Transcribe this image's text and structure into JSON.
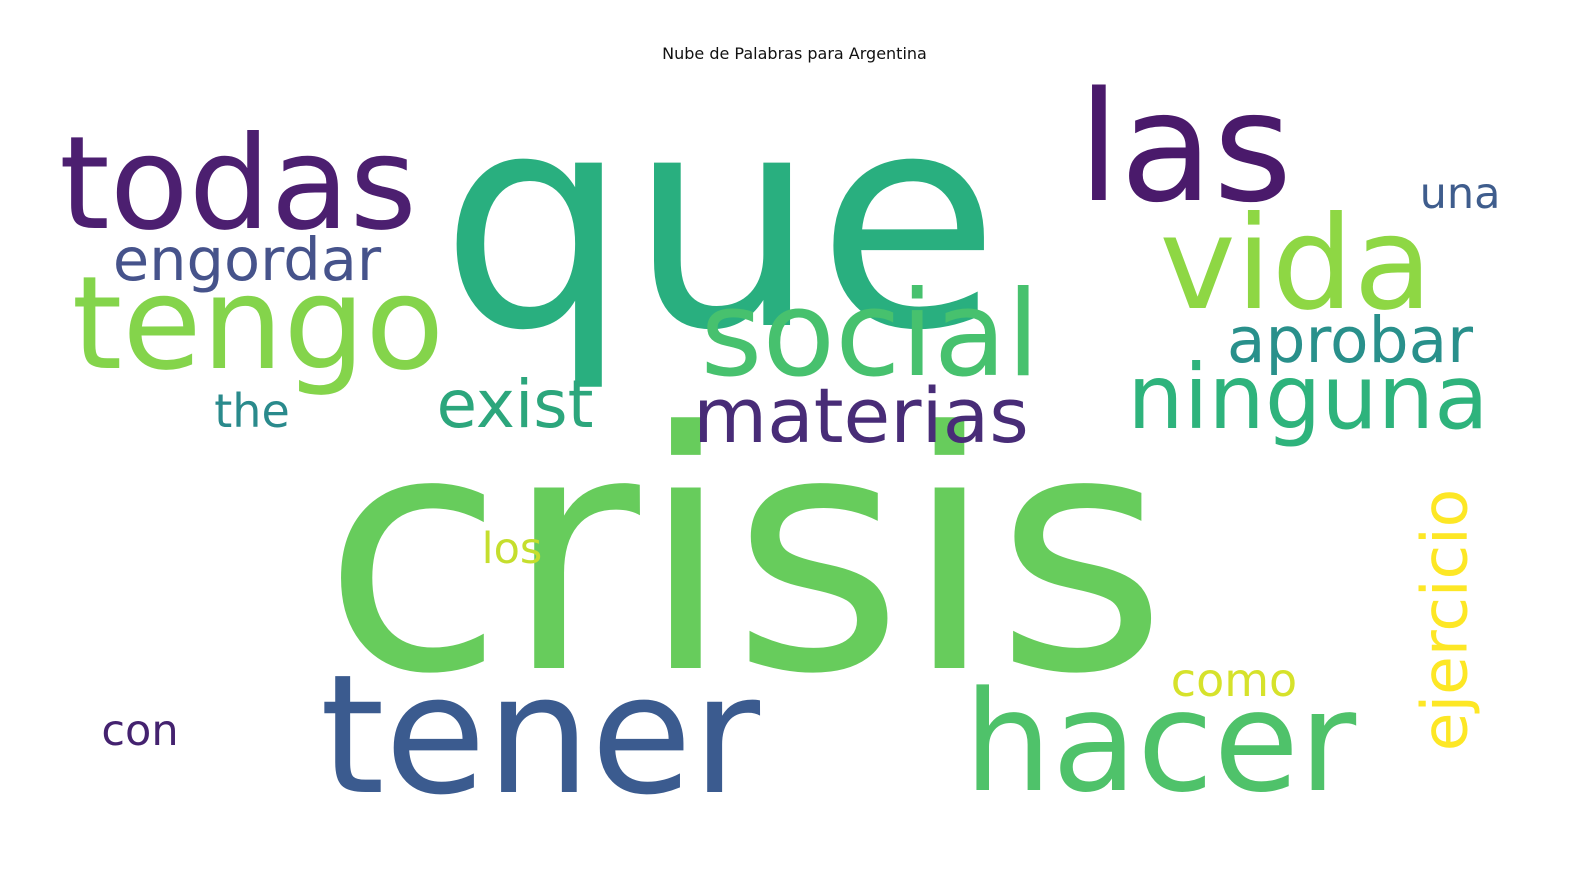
{
  "chart_data": {
    "type": "wordcloud",
    "title": "Nube de Palabras para Argentina",
    "words": [
      {
        "text": "crisis",
        "weight": 1.0,
        "color": "#67cc5c",
        "orientation": "horizontal"
      },
      {
        "text": "que",
        "weight": 0.9,
        "color": "#29af7f",
        "orientation": "horizontal"
      },
      {
        "text": "tener",
        "weight": 0.5,
        "color": "#3b5b8f",
        "orientation": "horizontal"
      },
      {
        "text": "las",
        "weight": 0.46,
        "color": "#4a1a6b",
        "orientation": "horizontal"
      },
      {
        "text": "hacer",
        "weight": 0.42,
        "color": "#4fc26a",
        "orientation": "horizontal"
      },
      {
        "text": "todas",
        "weight": 0.39,
        "color": "#4c1f70",
        "orientation": "horizontal"
      },
      {
        "text": "tengo",
        "weight": 0.39,
        "color": "#84d44b",
        "orientation": "horizontal"
      },
      {
        "text": "vida",
        "weight": 0.39,
        "color": "#8ed744",
        "orientation": "horizontal"
      },
      {
        "text": "social",
        "weight": 0.36,
        "color": "#47c16e",
        "orientation": "horizontal"
      },
      {
        "text": "ninguna",
        "weight": 0.27,
        "color": "#2eb37c",
        "orientation": "horizontal"
      },
      {
        "text": "materias",
        "weight": 0.23,
        "color": "#482c77",
        "orientation": "horizontal"
      },
      {
        "text": "exist",
        "weight": 0.2,
        "color": "#2ca67c",
        "orientation": "horizontal"
      },
      {
        "text": "aprobar",
        "weight": 0.19,
        "color": "#29908b",
        "orientation": "horizontal"
      },
      {
        "text": "ejercicio",
        "weight": 0.19,
        "color": "#fde725",
        "orientation": "vertical"
      },
      {
        "text": "engordar",
        "weight": 0.18,
        "color": "#46538b",
        "orientation": "horizontal"
      },
      {
        "text": "the",
        "weight": 0.14,
        "color": "#2a8a8c",
        "orientation": "horizontal"
      },
      {
        "text": "como",
        "weight": 0.14,
        "color": "#d6e22b",
        "orientation": "horizontal"
      },
      {
        "text": "una",
        "weight": 0.13,
        "color": "#3f5d8d",
        "orientation": "horizontal"
      },
      {
        "text": "los",
        "weight": 0.13,
        "color": "#c5de2d",
        "orientation": "horizontal"
      },
      {
        "text": "con",
        "weight": 0.13,
        "color": "#44226f",
        "orientation": "horizontal"
      }
    ]
  }
}
